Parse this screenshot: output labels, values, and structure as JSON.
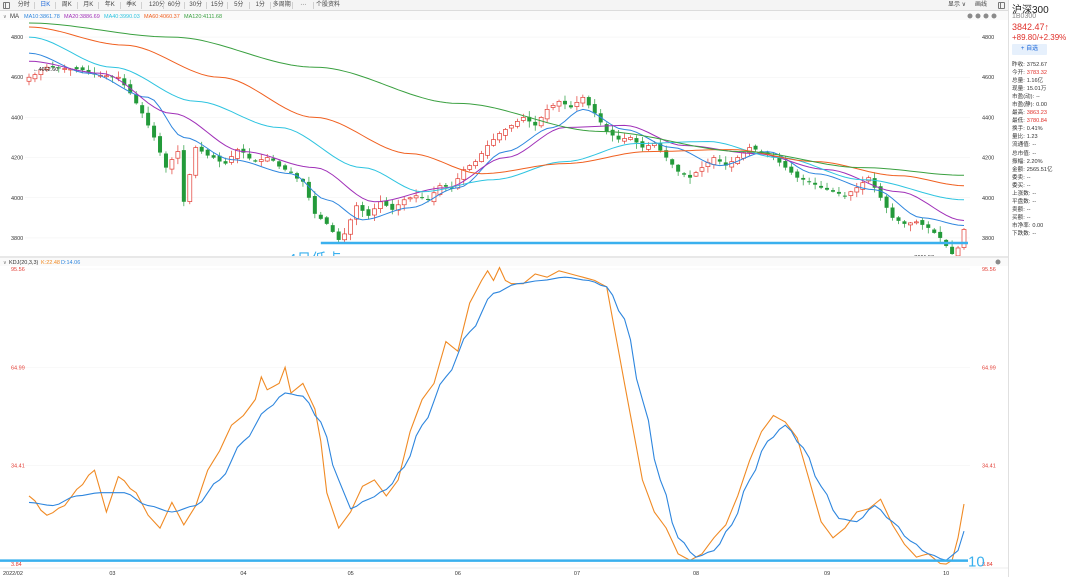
{
  "toolbar": {
    "tabs": [
      "分时",
      "日K",
      "周K",
      "月K",
      "年K",
      "季K",
      "120分",
      "60分",
      "30分",
      "15分",
      "5分",
      "1分",
      "多周期",
      "···",
      "个股资料"
    ],
    "active_tab": 1,
    "display_label": "显示 ∨",
    "draw_label": "画线"
  },
  "panel": {
    "name": "沪深300",
    "code": "1B0300",
    "price": "3842.47↑",
    "change": "+89.80/+2.39%",
    "watch_label": "+ 自选",
    "rows": [
      {
        "label": "昨收:",
        "value": "3752.67",
        "red": false
      },
      {
        "label": "今开:",
        "value": "3783.32",
        "red": true
      },
      {
        "label": "总量:",
        "value": "1.16亿",
        "red": false
      },
      {
        "label": "现量:",
        "value": "15.01万",
        "red": false
      },
      {
        "label": "市盈(动):",
        "value": "--",
        "red": false
      },
      {
        "label": "市盈(静):",
        "value": "0.00",
        "red": false
      },
      {
        "label": "最高:",
        "value": "3863.23",
        "red": true
      },
      {
        "label": "最低:",
        "value": "3780.84",
        "red": true
      },
      {
        "label": "换手:",
        "value": "0.41%",
        "red": false
      },
      {
        "label": "量比:",
        "value": "1.23",
        "red": false
      },
      {
        "label": "流通值:",
        "value": "--",
        "red": false
      },
      {
        "label": "总市值:",
        "value": "--",
        "red": false
      },
      {
        "label": "振幅:",
        "value": "2.20%",
        "red": false
      },
      {
        "label": "金额:",
        "value": "2565.51亿",
        "red": false
      },
      {
        "label": "委卖:",
        "value": "--",
        "red": false
      },
      {
        "label": "委买:",
        "value": "--",
        "red": false
      },
      {
        "label": "上涨数:",
        "value": "--",
        "red": false
      },
      {
        "label": "平盘数:",
        "value": "--",
        "red": false
      },
      {
        "label": "卖额:",
        "value": "--",
        "red": false
      },
      {
        "label": "买额:",
        "value": "--",
        "red": false
      },
      {
        "label": "市净率:",
        "value": "0.00",
        "red": false
      },
      {
        "label": "下跌数:",
        "value": "--",
        "red": false
      }
    ]
  },
  "colors": {
    "up": "#e23b32",
    "down": "#239a3a",
    "ma10": "#2e86de",
    "ma20": "#a030b8",
    "ma40": "#2ec4e0",
    "ma60": "#f06020",
    "ma120": "#3aa040",
    "k": "#f08a24",
    "d": "#2e86de",
    "annotation": "#3ab0ee"
  },
  "chart_data": [
    {
      "type": "candlestick",
      "title": "MA",
      "legend": [
        {
          "key": "ma10",
          "label": "MA10:3861.78"
        },
        {
          "key": "ma20",
          "label": "MA20:3886.69"
        },
        {
          "key": "ma40",
          "label": "MA40:3990.03"
        },
        {
          "key": "ma60",
          "label": "MA60:4060.37"
        },
        {
          "key": "ma120",
          "label": "MA120:4111.68"
        }
      ],
      "yticks": [
        3800,
        4000,
        4200,
        4400,
        4600,
        4800
      ],
      "ylim": [
        3720,
        4880
      ],
      "x_labels": [
        {
          "label": "2022/02",
          "i": 0
        },
        {
          "label": "03",
          "i": 14
        },
        {
          "label": "04",
          "i": 36
        },
        {
          "label": "05",
          "i": 54
        },
        {
          "label": "06",
          "i": 72
        },
        {
          "label": "07",
          "i": 92
        },
        {
          "label": "08",
          "i": 112
        },
        {
          "label": "09",
          "i": 134
        },
        {
          "label": "10",
          "i": 154
        }
      ],
      "n_candles": 158,
      "anchors": [
        [
          0,
          4600
        ],
        [
          3,
          4650
        ],
        [
          8,
          4640
        ],
        [
          12,
          4610
        ],
        [
          15,
          4600
        ],
        [
          17,
          4520
        ],
        [
          19,
          4420
        ],
        [
          21,
          4300
        ],
        [
          23,
          4150
        ],
        [
          25,
          4230
        ],
        [
          26,
          3980
        ],
        [
          28,
          4250
        ],
        [
          30,
          4210
        ],
        [
          33,
          4170
        ],
        [
          35,
          4240
        ],
        [
          38,
          4180
        ],
        [
          40,
          4200
        ],
        [
          43,
          4140
        ],
        [
          46,
          4080
        ],
        [
          48,
          3920
        ],
        [
          50,
          3870
        ],
        [
          52,
          3790
        ],
        [
          53,
          3820
        ],
        [
          55,
          3960
        ],
        [
          57,
          3910
        ],
        [
          59,
          3980
        ],
        [
          61,
          3940
        ],
        [
          63,
          3990
        ],
        [
          65,
          4010
        ],
        [
          67,
          3990
        ],
        [
          69,
          4060
        ],
        [
          71,
          4050
        ],
        [
          73,
          4140
        ],
        [
          75,
          4180
        ],
        [
          77,
          4260
        ],
        [
          79,
          4320
        ],
        [
          81,
          4360
        ],
        [
          83,
          4400
        ],
        [
          85,
          4360
        ],
        [
          87,
          4440
        ],
        [
          89,
          4480
        ],
        [
          91,
          4450
        ],
        [
          93,
          4500
        ],
        [
          95,
          4420
        ],
        [
          97,
          4330
        ],
        [
          99,
          4290
        ],
        [
          101,
          4300
        ],
        [
          103,
          4250
        ],
        [
          105,
          4270
        ],
        [
          107,
          4200
        ],
        [
          109,
          4130
        ],
        [
          111,
          4100
        ],
        [
          113,
          4150
        ],
        [
          115,
          4200
        ],
        [
          117,
          4160
        ],
        [
          119,
          4200
        ],
        [
          121,
          4250
        ],
        [
          123,
          4230
        ],
        [
          125,
          4200
        ],
        [
          127,
          4150
        ],
        [
          129,
          4100
        ],
        [
          131,
          4080
        ],
        [
          133,
          4050
        ],
        [
          135,
          4030
        ],
        [
          137,
          4010
        ],
        [
          139,
          4050
        ],
        [
          141,
          4100
        ],
        [
          143,
          4000
        ],
        [
          145,
          3900
        ],
        [
          147,
          3870
        ],
        [
          149,
          3880
        ],
        [
          151,
          3850
        ],
        [
          153,
          3800
        ],
        [
          154,
          3760
        ],
        [
          155,
          3720
        ],
        [
          156,
          3750
        ],
        [
          157,
          3842
        ]
      ],
      "ma_start": {
        "ma10": 4720,
        "ma20": 4720,
        "ma40": 4800,
        "ma60": 4850,
        "ma120": 4860
      },
      "ma_anchors": {
        "ma10": [
          [
            0,
            4720
          ],
          [
            10,
            4620
          ],
          [
            20,
            4500
          ],
          [
            26,
            4300
          ],
          [
            34,
            4190
          ],
          [
            44,
            4120
          ],
          [
            50,
            3990
          ],
          [
            56,
            3890
          ],
          [
            64,
            3950
          ],
          [
            72,
            4050
          ],
          [
            80,
            4230
          ],
          [
            88,
            4350
          ],
          [
            93,
            4440
          ],
          [
            100,
            4340
          ],
          [
            108,
            4250
          ],
          [
            116,
            4160
          ],
          [
            124,
            4230
          ],
          [
            132,
            4120
          ],
          [
            142,
            4040
          ],
          [
            150,
            3900
          ],
          [
            157,
            3862
          ]
        ],
        "ma20": [
          [
            0,
            4680
          ],
          [
            12,
            4620
          ],
          [
            24,
            4420
          ],
          [
            36,
            4230
          ],
          [
            48,
            4150
          ],
          [
            58,
            3980
          ],
          [
            70,
            4050
          ],
          [
            80,
            4200
          ],
          [
            90,
            4350
          ],
          [
            100,
            4360
          ],
          [
            110,
            4260
          ],
          [
            122,
            4220
          ],
          [
            134,
            4140
          ],
          [
            146,
            4030
          ],
          [
            157,
            3887
          ]
        ],
        "ma40": [
          [
            0,
            4800
          ],
          [
            14,
            4650
          ],
          [
            28,
            4480
          ],
          [
            42,
            4350
          ],
          [
            56,
            4150
          ],
          [
            66,
            4030
          ],
          [
            78,
            4090
          ],
          [
            90,
            4180
          ],
          [
            102,
            4270
          ],
          [
            114,
            4280
          ],
          [
            126,
            4200
          ],
          [
            140,
            4090
          ],
          [
            157,
            3990
          ]
        ],
        "ma60": [
          [
            0,
            4850
          ],
          [
            16,
            4760
          ],
          [
            32,
            4600
          ],
          [
            48,
            4400
          ],
          [
            64,
            4220
          ],
          [
            76,
            4120
          ],
          [
            90,
            4170
          ],
          [
            104,
            4230
          ],
          [
            118,
            4240
          ],
          [
            132,
            4180
          ],
          [
            146,
            4110
          ],
          [
            157,
            4060
          ]
        ],
        "ma120": [
          [
            0,
            4870
          ],
          [
            24,
            4800
          ],
          [
            48,
            4650
          ],
          [
            72,
            4470
          ],
          [
            96,
            4330
          ],
          [
            120,
            4230
          ],
          [
            140,
            4150
          ],
          [
            157,
            4112
          ]
        ]
      },
      "annotations": {
        "high_label": "←4662.60",
        "low_label": "3661.53→",
        "support_level": 3775,
        "support_label": "4月低点"
      }
    },
    {
      "type": "line",
      "title": "KDJ(20,3,3)",
      "legend": [
        {
          "key": "k",
          "label": "K:22.48"
        },
        {
          "key": "d",
          "label": "D:14.06"
        }
      ],
      "yticks": [
        3.84,
        34.41,
        64.99,
        95.56
      ],
      "ylim": [
        3.84,
        95.56
      ],
      "k": [
        [
          0,
          25
        ],
        [
          3,
          19
        ],
        [
          6,
          22
        ],
        [
          8,
          27
        ],
        [
          11,
          33
        ],
        [
          13,
          20
        ],
        [
          15,
          31
        ],
        [
          18,
          26
        ],
        [
          20,
          19
        ],
        [
          22,
          15
        ],
        [
          24,
          23
        ],
        [
          26,
          16
        ],
        [
          28,
          22
        ],
        [
          30,
          33
        ],
        [
          32,
          39
        ],
        [
          34,
          47
        ],
        [
          36,
          50
        ],
        [
          38,
          55
        ],
        [
          39,
          62
        ],
        [
          40,
          58
        ],
        [
          42,
          60
        ],
        [
          43,
          65
        ],
        [
          44,
          57
        ],
        [
          46,
          60
        ],
        [
          48,
          52
        ],
        [
          49,
          42
        ],
        [
          50,
          26
        ],
        [
          52,
          15
        ],
        [
          54,
          20
        ],
        [
          56,
          28
        ],
        [
          58,
          30
        ],
        [
          60,
          25
        ],
        [
          62,
          30
        ],
        [
          64,
          45
        ],
        [
          66,
          55
        ],
        [
          68,
          60
        ],
        [
          70,
          73
        ],
        [
          72,
          70
        ],
        [
          74,
          85
        ],
        [
          76,
          92
        ],
        [
          77,
          95
        ],
        [
          78,
          92
        ],
        [
          79,
          96
        ],
        [
          80,
          92
        ],
        [
          81,
          91
        ],
        [
          83,
          91
        ],
        [
          85,
          94
        ],
        [
          87,
          93
        ],
        [
          89,
          95
        ],
        [
          91,
          94
        ],
        [
          93,
          93
        ],
        [
          95,
          92
        ],
        [
          97,
          90
        ],
        [
          99,
          70
        ],
        [
          101,
          50
        ],
        [
          103,
          30
        ],
        [
          105,
          20
        ],
        [
          107,
          15
        ],
        [
          109,
          7
        ],
        [
          111,
          5
        ],
        [
          113,
          7
        ],
        [
          115,
          12
        ],
        [
          117,
          16
        ],
        [
          119,
          25
        ],
        [
          121,
          36
        ],
        [
          123,
          45
        ],
        [
          125,
          50
        ],
        [
          127,
          48
        ],
        [
          129,
          43
        ],
        [
          131,
          30
        ],
        [
          133,
          17
        ],
        [
          135,
          12
        ],
        [
          137,
          15
        ],
        [
          139,
          20
        ],
        [
          141,
          21
        ],
        [
          143,
          24
        ],
        [
          145,
          16
        ],
        [
          147,
          10
        ],
        [
          149,
          6
        ],
        [
          151,
          7
        ],
        [
          153,
          4
        ],
        [
          154,
          3.8
        ],
        [
          155,
          5
        ],
        [
          156,
          12
        ],
        [
          157,
          22.48
        ]
      ],
      "d": [
        [
          0,
          23
        ],
        [
          4,
          22
        ],
        [
          8,
          25
        ],
        [
          12,
          26
        ],
        [
          16,
          26
        ],
        [
          20,
          22
        ],
        [
          24,
          20
        ],
        [
          28,
          22
        ],
        [
          32,
          30
        ],
        [
          36,
          42
        ],
        [
          40,
          52
        ],
        [
          43,
          57
        ],
        [
          46,
          56
        ],
        [
          49,
          48
        ],
        [
          52,
          30
        ],
        [
          54,
          21
        ],
        [
          57,
          24
        ],
        [
          60,
          27
        ],
        [
          63,
          34
        ],
        [
          66,
          47
        ],
        [
          70,
          62
        ],
        [
          74,
          76
        ],
        [
          78,
          88
        ],
        [
          82,
          91
        ],
        [
          86,
          92
        ],
        [
          90,
          93
        ],
        [
          94,
          92
        ],
        [
          97,
          90
        ],
        [
          100,
          80
        ],
        [
          103,
          55
        ],
        [
          106,
          30
        ],
        [
          109,
          12
        ],
        [
          112,
          6
        ],
        [
          115,
          8
        ],
        [
          118,
          16
        ],
        [
          121,
          30
        ],
        [
          124,
          42
        ],
        [
          127,
          47
        ],
        [
          130,
          40
        ],
        [
          133,
          28
        ],
        [
          136,
          18
        ],
        [
          139,
          17
        ],
        [
          142,
          22
        ],
        [
          145,
          17
        ],
        [
          148,
          11
        ],
        [
          151,
          7
        ],
        [
          154,
          5
        ],
        [
          156,
          8
        ],
        [
          157,
          14.06
        ]
      ],
      "x_labels_shared": true,
      "annotations": {
        "level": 4.9,
        "level_label": "10"
      }
    }
  ]
}
